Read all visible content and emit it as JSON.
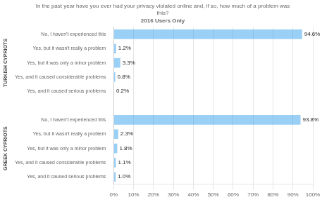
{
  "chart_data": {
    "type": "bar",
    "orientation": "horizontal",
    "title": [
      "In the past year have you ever had your privacy violated online and, if so, how much of a problem was",
      "this?"
    ],
    "subtitle": "2016 Users Only",
    "groups": [
      {
        "name": "TURKISH CYPRIOTS",
        "categories": [
          "No, I haven't experienced this",
          "Yes, but it wasn't really a problem",
          "Yes, but it was only a minor problem",
          "Yes, and it caused considerable problems",
          "Yes, and it caused serious problems"
        ],
        "values": [
          94.6,
          1.2,
          3.3,
          0.8,
          0.2
        ],
        "value_labels": [
          "94.6%",
          "1.2%",
          "3.3%",
          "0.8%",
          "0.2%"
        ]
      },
      {
        "name": "GREEK CYPRIOTS",
        "categories": [
          "No, I haven't experienced this",
          "Yes, but it wasn't really a problem",
          "Yes, but it was only a minor problem",
          "Yes, and it caused considerable problems",
          "Yes, and it caused serious problems"
        ],
        "values": [
          93.8,
          2.3,
          1.8,
          1.1,
          1.0
        ],
        "value_labels": [
          "93.8%",
          "2.3%",
          "1.8%",
          "1.1%",
          "1.0%"
        ]
      }
    ],
    "xlim": [
      0,
      100
    ],
    "xticks": [
      {
        "value": 0,
        "label": "0%"
      },
      {
        "value": 10,
        "label": "10%"
      },
      {
        "value": 20,
        "label": "20%"
      },
      {
        "value": 30,
        "label": "30%"
      },
      {
        "value": 40,
        "label": "40%"
      },
      {
        "value": 50,
        "label": "50%"
      },
      {
        "value": 60,
        "label": "60%"
      },
      {
        "value": 70,
        "label": "70%"
      },
      {
        "value": 80,
        "label": "80%"
      },
      {
        "value": 90,
        "label": "90%"
      },
      {
        "value": 100,
        "label": "100%"
      }
    ],
    "grid": true,
    "data_labels": true
  }
}
